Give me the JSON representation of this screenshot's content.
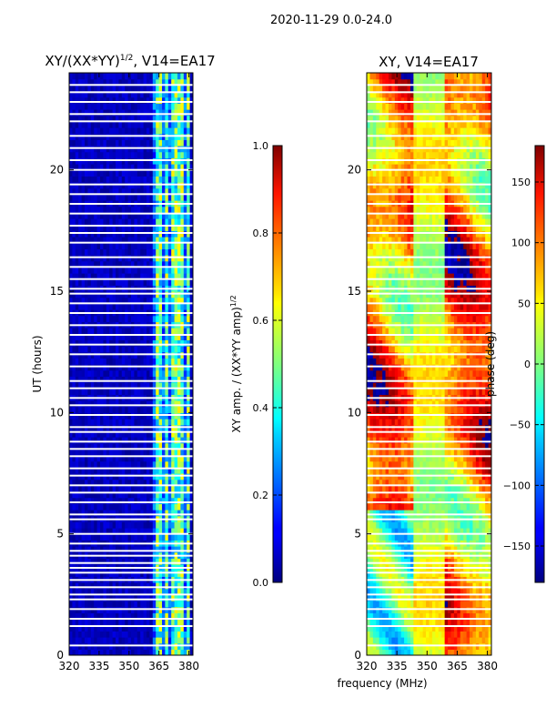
{
  "chart_data": {
    "type": "heatmap",
    "suptitle": "2020-11-29 0.0-24.0",
    "xlabel": "frequency (MHz)",
    "panels": [
      {
        "id": "amp",
        "title_main": "XY/(XX*YY)",
        "title_sup": "1/2",
        "title_tail": ", V14=EA17",
        "ylabel": "UT (hours)",
        "xlim": [
          320,
          382
        ],
        "ylim": [
          0,
          24
        ],
        "xticks": [
          "320",
          "335",
          "350",
          "365",
          "380"
        ],
        "xtick_values": [
          320,
          335,
          350,
          365,
          380
        ],
        "yticks": [
          "0",
          "5",
          "10",
          "15",
          "20"
        ],
        "ytick_values": [
          0,
          5,
          10,
          15,
          20
        ],
        "colorbar": {
          "label_main": "XY amp. / (XX*YY amp)",
          "label_sup": "1/2",
          "range": [
            0.0,
            1.0
          ],
          "ticks": [
            "0.0",
            "0.2",
            "0.4",
            "0.6",
            "0.8",
            "1.0"
          ],
          "tick_values": [
            0.0,
            0.2,
            0.4,
            0.6,
            0.8,
            1.0
          ]
        }
      },
      {
        "id": "phase",
        "title": "XY, V14=EA17",
        "xlim": [
          320,
          382
        ],
        "ylim": [
          0,
          24
        ],
        "xticks": [
          "320",
          "335",
          "350",
          "365",
          "380"
        ],
        "xtick_values": [
          320,
          335,
          350,
          365,
          380
        ],
        "yticks": [
          "0",
          "5",
          "10",
          "15",
          "20"
        ],
        "ytick_values": [
          0,
          5,
          10,
          15,
          20
        ],
        "colorbar": {
          "label": "phase (deg)",
          "range": [
            -180,
            180
          ],
          "ticks": [
            "−150",
            "−100",
            "−50",
            "0",
            "50",
            "100",
            "150"
          ],
          "tick_values": [
            -150,
            -100,
            -50,
            0,
            50,
            100,
            150
          ]
        }
      }
    ],
    "flagged_hours": [
      0.4,
      1.2,
      1.5,
      1.9,
      2.3,
      2.5,
      2.8,
      3.1,
      3.4,
      3.6,
      3.8,
      4.1,
      4.3,
      4.6,
      5.0,
      5.6,
      5.8,
      6.3,
      6.7,
      7.0,
      7.4,
      7.7,
      8.2,
      8.5,
      8.8,
      9.2,
      9.4,
      9.9,
      10.3,
      10.6,
      11.0,
      11.3,
      11.9,
      12.4,
      12.8,
      13.2,
      13.6,
      14.1,
      14.5,
      14.9,
      15.1,
      15.5,
      16.0,
      16.4,
      17.0,
      17.4,
      17.7,
      18.2,
      18.6,
      19.0,
      19.4,
      20.0,
      20.4,
      20.9,
      21.4,
      22.0,
      22.3,
      22.8,
      23.2,
      23.5
    ],
    "high_amp_band_mhz": [
      362,
      380
    ]
  }
}
